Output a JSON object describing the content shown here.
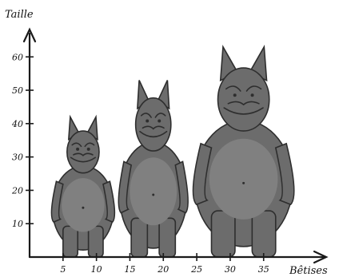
{
  "chart_data": {
    "type": "bar",
    "style": "pictograph (grey monster figures)",
    "ylabel": "Taille",
    "xlabel": "Bêtises",
    "x_ticks": [
      "5",
      "10",
      "15",
      "20",
      "25",
      "30",
      "35"
    ],
    "y_ticks": [
      "10",
      "20",
      "30",
      "40",
      "50",
      "60"
    ],
    "xlim": [
      0,
      44
    ],
    "ylim": [
      0,
      67
    ],
    "monsters": [
      {
        "x_from": 3,
        "x_to": 13,
        "height": 42
      },
      {
        "x_from": 13,
        "x_to": 24,
        "height": 53
      },
      {
        "x_from": 24,
        "x_to": 40,
        "height": 63
      }
    ],
    "colors": {
      "monster": "#6c6c6c",
      "belly": "#808080",
      "outline": "#2e2e2e",
      "axis": "#1a1a1a"
    }
  }
}
